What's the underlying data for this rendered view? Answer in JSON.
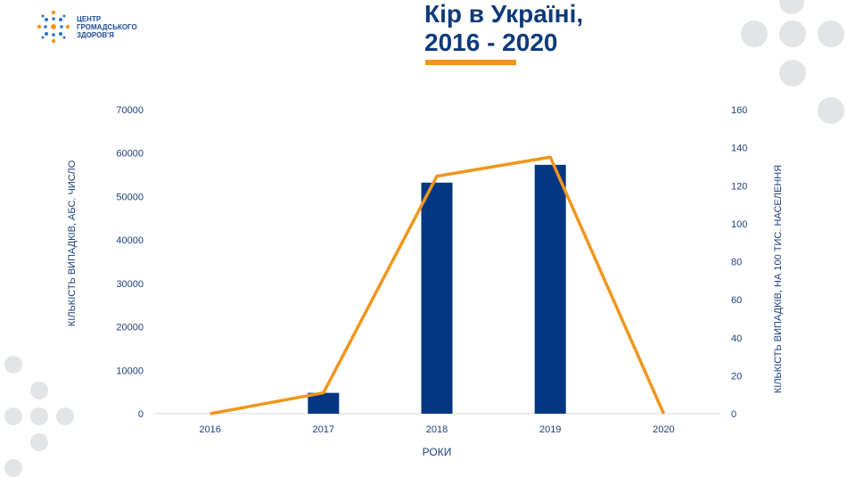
{
  "logo": {
    "line1": "ЦЕНТР",
    "line2": "ГРОМАДСЬКОГО",
    "line3": "ЗДОРОВ'Я"
  },
  "title": {
    "line1": "Кір в Україні,",
    "line2": "2016 - 2020"
  },
  "colors": {
    "bar": "#033682",
    "line": "#f0961c",
    "title": "#0e3a7a",
    "axis_text": "#1d3f7c",
    "deco": "#e3e4e6"
  },
  "chart_data": {
    "type": "bar+line",
    "categories": [
      "2016",
      "2017",
      "2018",
      "2019",
      "2020"
    ],
    "series": [
      {
        "type": "bar",
        "axis": "left",
        "values": [
          0,
          4800,
          53200,
          57300,
          0
        ]
      },
      {
        "type": "line",
        "axis": "right",
        "values": [
          0,
          11,
          125,
          135,
          0
        ]
      }
    ],
    "xlabel": "РОКИ",
    "ylabel_left": "КІЛЬКІСТЬ ВИПАДКІВ, АБС. ЧИСЛО",
    "ylabel_right": "КІЛЬКІСТЬ ВИПАДКІВ, НА 100 ТИС. НАСЕЛЕННЯ",
    "yticks_left": [
      "0",
      "10000",
      "20000",
      "30000",
      "40000",
      "50000",
      "60000",
      "70000"
    ],
    "yticks_right": [
      "0",
      "20",
      "40",
      "60",
      "80",
      "100",
      "120",
      "140",
      "160"
    ],
    "ylim_left": [
      0,
      70000
    ],
    "ylim_right": [
      0,
      160
    ],
    "grid": false,
    "legend": "none"
  }
}
